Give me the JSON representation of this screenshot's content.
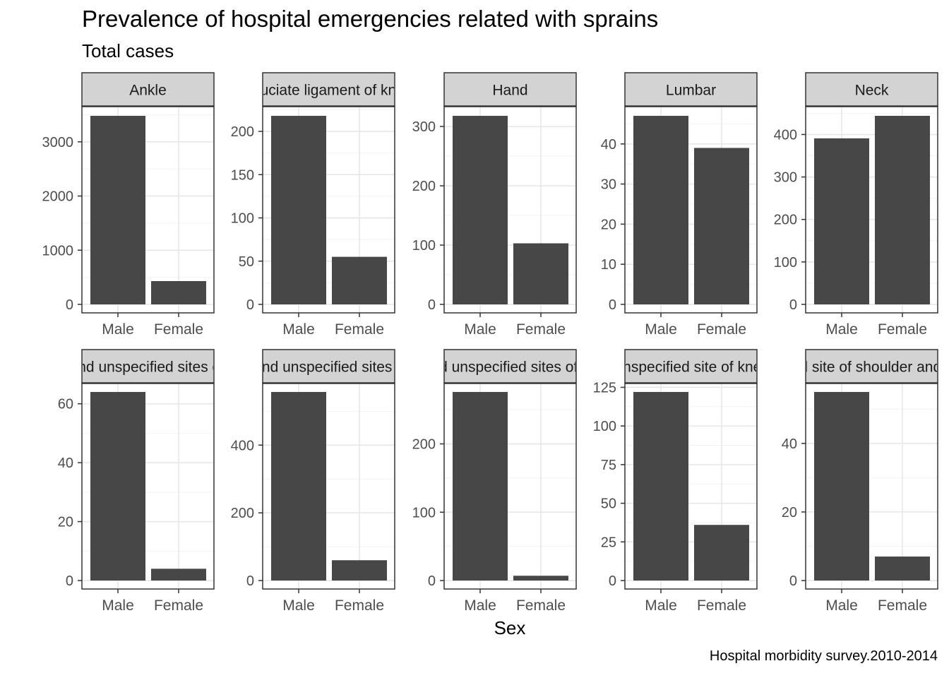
{
  "title": "Prevalence of hospital emergencies related with sprains",
  "subtitle": "Total cases",
  "xlabel": "Sex",
  "caption": "Hospital morbidity survey.2010-2014",
  "colors": {
    "bar": "#474747",
    "strip": "#d3d3d3",
    "grid_major": "#e6e6e6",
    "grid_minor": "#f2f2f2",
    "axis_text": "#4d4d4d"
  },
  "chart_data": {
    "type": "bar",
    "facet_layout": "2 rows x 5 columns, free y scales",
    "grid": true,
    "categories": [
      "Male",
      "Female"
    ],
    "facets": [
      {
        "label": "Ankle",
        "values": [
          3480,
          430
        ],
        "ylim": [
          0,
          3480
        ],
        "ticks": [
          0,
          1000,
          2000,
          3000
        ]
      },
      {
        "label": "Cruciate ligament of knee",
        "values": [
          218,
          55
        ],
        "ylim": [
          0,
          218
        ],
        "ticks": [
          0,
          50,
          100,
          150,
          200
        ]
      },
      {
        "label": "Hand",
        "values": [
          318,
          103
        ],
        "ylim": [
          0,
          318
        ],
        "ticks": [
          0,
          100,
          200,
          300
        ]
      },
      {
        "label": "Lumbar",
        "values": [
          47,
          39
        ],
        "ylim": [
          0,
          47
        ],
        "ticks": [
          0,
          10,
          20,
          30,
          40
        ]
      },
      {
        "label": "Neck",
        "values": [
          391,
          444
        ],
        "ylim": [
          0,
          444
        ],
        "ticks": [
          0,
          100,
          200,
          300,
          400
        ]
      },
      {
        "label": "Other and unspecified sites of elbow",
        "values": [
          64,
          4
        ],
        "ylim": [
          0,
          64
        ],
        "ticks": [
          0,
          20,
          40,
          60
        ]
      },
      {
        "label": "Other and unspecified sites of knee",
        "values": [
          557,
          60
        ],
        "ylim": [
          0,
          557
        ],
        "ticks": [
          0,
          200,
          400
        ]
      },
      {
        "label": "Other and unspecified sites of shoulder",
        "values": [
          276,
          7
        ],
        "ylim": [
          0,
          276
        ],
        "ticks": [
          0,
          100,
          200
        ]
      },
      {
        "label": "Unspecified site of knee",
        "values": [
          122,
          36
        ],
        "ylim": [
          0,
          122
        ],
        "ticks": [
          0,
          25,
          50,
          75,
          100,
          125
        ]
      },
      {
        "label": "Unspecified site of shoulder and upper arm",
        "values": [
          55,
          7
        ],
        "ylim": [
          0,
          55
        ],
        "ticks": [
          0,
          20,
          40
        ]
      }
    ]
  }
}
